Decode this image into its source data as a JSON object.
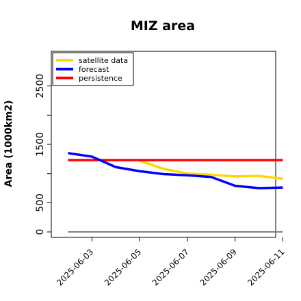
{
  "chart_data": {
    "type": "line",
    "title": "MIZ area",
    "ylabel": "Area (1000km2)",
    "xlabel": "",
    "ylim": [
      0,
      3000
    ],
    "yticks": [
      0,
      500,
      1500,
      2500
    ],
    "xlim": [
      -0.7,
      8.7
    ],
    "x": [
      "2025-06-02",
      "2025-06-03",
      "2025-06-04",
      "2025-06-05",
      "2025-06-06",
      "2025-06-07",
      "2025-06-08",
      "2025-06-09",
      "2025-06-10",
      "2025-06-11"
    ],
    "xtick_labels": [
      {
        "label": "2025-06-03",
        "color": "#228B22"
      },
      {
        "label": "2025-06-05",
        "color": "#000000"
      },
      {
        "label": "2025-06-07",
        "color": "#000000"
      },
      {
        "label": "2025-06-09",
        "color": "#000000"
      },
      {
        "label": "2025-06-11",
        "color": "#000000"
      }
    ],
    "series": [
      {
        "name": "satellite data",
        "color": "#FFD700",
        "values": [
          null,
          null,
          null,
          1220,
          1080,
          1000,
          980,
          950,
          960,
          910
        ]
      },
      {
        "name": "forecast",
        "color": "#0000FF",
        "values": [
          1350,
          1290,
          1110,
          1040,
          990,
          970,
          940,
          790,
          750,
          760
        ]
      },
      {
        "name": "persistence",
        "color": "#FF0000",
        "values": [
          1230,
          1230,
          1230,
          1230,
          1230,
          1230,
          1230,
          1230,
          1230,
          1230
        ]
      },
      {
        "name": "",
        "color": "#808080",
        "values": [
          0,
          0,
          0,
          0,
          0,
          0,
          0,
          0,
          0,
          0
        ]
      }
    ],
    "legend": "top-left",
    "grid": false
  }
}
